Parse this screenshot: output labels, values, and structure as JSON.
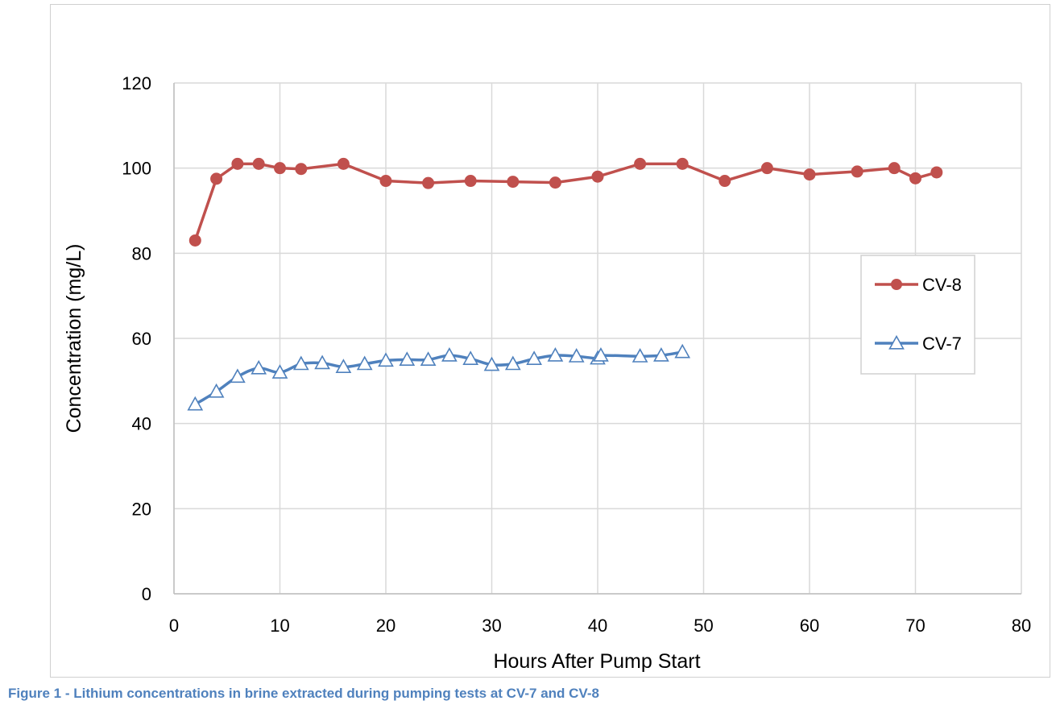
{
  "caption": "Figure 1 - Lithium concentrations in brine extracted during pumping tests at CV-7 and CV-8",
  "chart_data": {
    "type": "line",
    "title": "",
    "xlabel": "Hours After Pump Start",
    "ylabel": "Concentration (mg/L)",
    "xlim": [
      0,
      80
    ],
    "ylim": [
      0,
      120
    ],
    "xticks": [
      "0",
      "10",
      "20",
      "30",
      "40",
      "50",
      "60",
      "70",
      "80"
    ],
    "yticks": [
      "0",
      "20",
      "40",
      "60",
      "80",
      "100",
      "120"
    ],
    "grid": true,
    "legend_position": "right",
    "series": [
      {
        "name": "CV-8",
        "color": "#c0504d",
        "marker": "circle",
        "points": [
          [
            2,
            83
          ],
          [
            4,
            97.5
          ],
          [
            6,
            101
          ],
          [
            8,
            101
          ],
          [
            10,
            100
          ],
          [
            12,
            99.8
          ],
          [
            16,
            101
          ],
          [
            20,
            97
          ],
          [
            24,
            96.5
          ],
          [
            28,
            97
          ],
          [
            32,
            96.8
          ],
          [
            36,
            96.6
          ],
          [
            40,
            98
          ],
          [
            44,
            101
          ],
          [
            48,
            101
          ],
          [
            52,
            97
          ],
          [
            56,
            100
          ],
          [
            60,
            98.5
          ],
          [
            64.5,
            99.2
          ],
          [
            68,
            100
          ],
          [
            70,
            97.6
          ],
          [
            72,
            99
          ]
        ]
      },
      {
        "name": "CV-7",
        "color": "#4f81bd",
        "marker": "triangle",
        "points": [
          [
            2,
            44.5
          ],
          [
            4,
            47.5
          ],
          [
            6,
            51
          ],
          [
            8,
            53
          ],
          [
            10,
            52
          ],
          [
            12,
            54
          ],
          [
            14,
            54.2
          ],
          [
            16,
            53.3
          ],
          [
            18,
            54
          ],
          [
            20,
            54.8
          ],
          [
            22,
            55
          ],
          [
            24,
            55
          ],
          [
            26,
            56
          ],
          [
            28,
            55.2
          ],
          [
            30,
            53.8
          ],
          [
            32,
            54
          ],
          [
            34,
            55.2
          ],
          [
            36,
            56
          ],
          [
            38,
            55.8
          ],
          [
            40,
            55.3
          ],
          [
            40.3,
            56
          ],
          [
            44,
            55.8
          ],
          [
            46,
            56
          ],
          [
            48,
            56.8
          ]
        ]
      }
    ]
  }
}
